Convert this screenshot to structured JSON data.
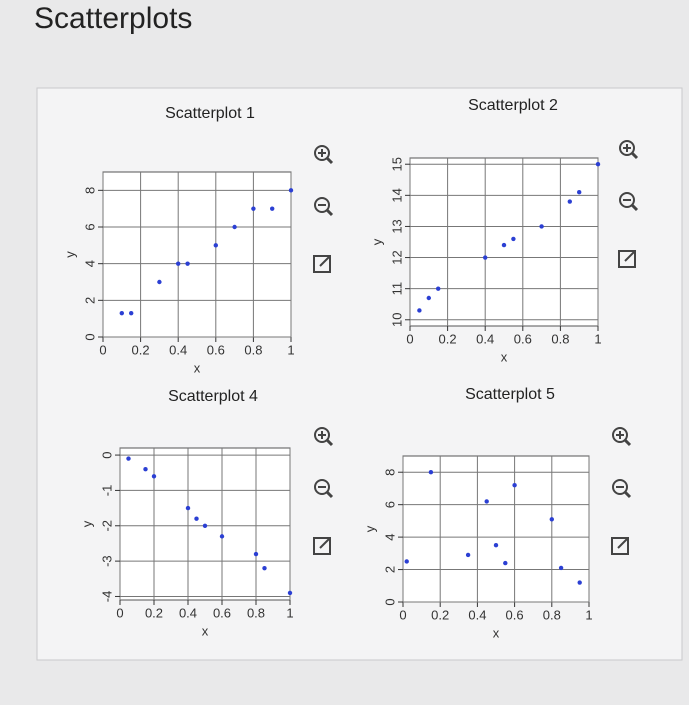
{
  "title": "Scatterplots",
  "chart_data": [
    {
      "type": "scatter",
      "title": "Scatterplot 1",
      "x_label": "x",
      "y_label": "y",
      "color": "#2b3fd3",
      "grid": true,
      "x": [
        0.1,
        0.15,
        0.3,
        0.4,
        0.45,
        0.6,
        0.7,
        0.8,
        0.9,
        1.0
      ],
      "y": [
        1.3,
        1.3,
        3,
        4,
        4,
        5,
        6,
        7,
        7,
        8
      ],
      "xlim": [
        0,
        1
      ],
      "ylim": [
        0,
        9
      ],
      "xticks": [
        0,
        0.2,
        0.4,
        0.6,
        0.8,
        1
      ],
      "yticks": [
        0,
        2,
        4,
        6,
        8
      ]
    },
    {
      "type": "scatter",
      "title": "Scatterplot 2",
      "x_label": "x",
      "y_label": "y",
      "color": "#2b3fd3",
      "grid": true,
      "x": [
        0.05,
        0.1,
        0.15,
        0.4,
        0.5,
        0.55,
        0.7,
        0.85,
        0.9,
        1.0
      ],
      "y": [
        10.3,
        10.7,
        11,
        12,
        12.4,
        12.6,
        13,
        13.8,
        14.1,
        15
      ],
      "xlim": [
        0,
        1
      ],
      "ylim": [
        9.8,
        15.2
      ],
      "xticks": [
        0,
        0.2,
        0.4,
        0.6,
        0.8,
        1
      ],
      "yticks": [
        10,
        11,
        12,
        13,
        14,
        15
      ]
    },
    {
      "type": "scatter",
      "title": "Scatterplot 4",
      "x_label": "x",
      "y_label": "y",
      "color": "#2b3fd3",
      "grid": true,
      "x": [
        0.05,
        0.15,
        0.2,
        0.4,
        0.45,
        0.5,
        0.6,
        0.8,
        0.85,
        1.0
      ],
      "y": [
        -0.1,
        -0.4,
        -0.6,
        -1.5,
        -1.8,
        -2,
        -2.3,
        -2.8,
        -3.2,
        -3.9
      ],
      "xlim": [
        0,
        1
      ],
      "ylim": [
        -4.1,
        0.2
      ],
      "xticks": [
        0,
        0.2,
        0.4,
        0.6,
        0.8,
        1
      ],
      "yticks": [
        0,
        -1,
        -2,
        -3,
        -4
      ]
    },
    {
      "type": "scatter",
      "title": "Scatterplot 5",
      "x_label": "x",
      "y_label": "y",
      "color": "#2b3fd3",
      "grid": true,
      "x": [
        0.02,
        0.15,
        0.35,
        0.45,
        0.5,
        0.55,
        0.6,
        0.8,
        0.85,
        0.95
      ],
      "y": [
        2.5,
        8,
        2.9,
        6.2,
        3.5,
        2.4,
        7.2,
        5.1,
        2.1,
        1.2
      ],
      "xlim": [
        0,
        1
      ],
      "ylim": [
        0,
        9
      ],
      "xticks": [
        0,
        0.2,
        0.4,
        0.6,
        0.8,
        1
      ],
      "yticks": [
        0,
        2,
        4,
        6,
        8
      ]
    }
  ]
}
